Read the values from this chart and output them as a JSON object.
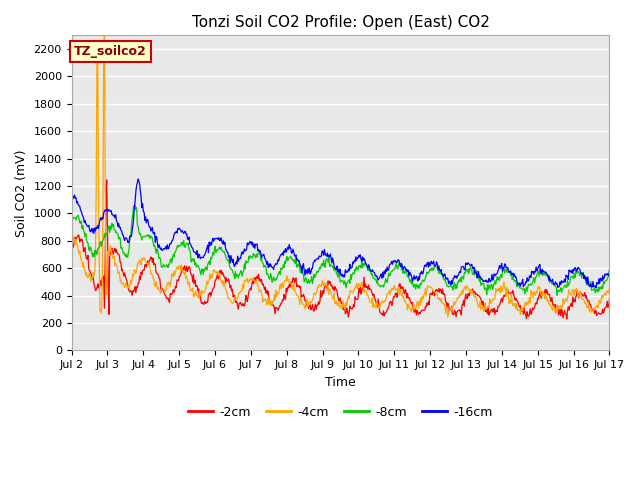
{
  "title": "Tonzi Soil CO2 Profile: Open (East) CO2",
  "xlabel": "Time",
  "ylabel": "Soil CO2 (mV)",
  "ylim": [
    0,
    2300
  ],
  "yticks": [
    0,
    200,
    400,
    600,
    800,
    1000,
    1200,
    1400,
    1600,
    1800,
    2000,
    2200
  ],
  "xtick_labels": [
    "Jul 2",
    "Jul 3",
    "Jul 4",
    "Jul 5",
    "Jul 6",
    "Jul 7",
    "Jul 8",
    "Jul 9",
    "Jul 10",
    "Jul 11",
    "Jul 12",
    "Jul 13",
    "Jul 14",
    "Jul 15",
    "Jul 16",
    "Jul 17"
  ],
  "legend_labels": [
    "-2cm",
    "-4cm",
    "-8cm",
    "-16cm"
  ],
  "line_colors": [
    "#ff0000",
    "#ffa500",
    "#00cc00",
    "#0000ff"
  ],
  "annotation_text": "TZ_soilco2",
  "annotation_bg": "#ffffcc",
  "annotation_edge": "#cc0000",
  "bg_color": "#e8e8e8",
  "title_fontsize": 11,
  "axis_fontsize": 9,
  "tick_fontsize": 8,
  "legend_fontsize": 9
}
